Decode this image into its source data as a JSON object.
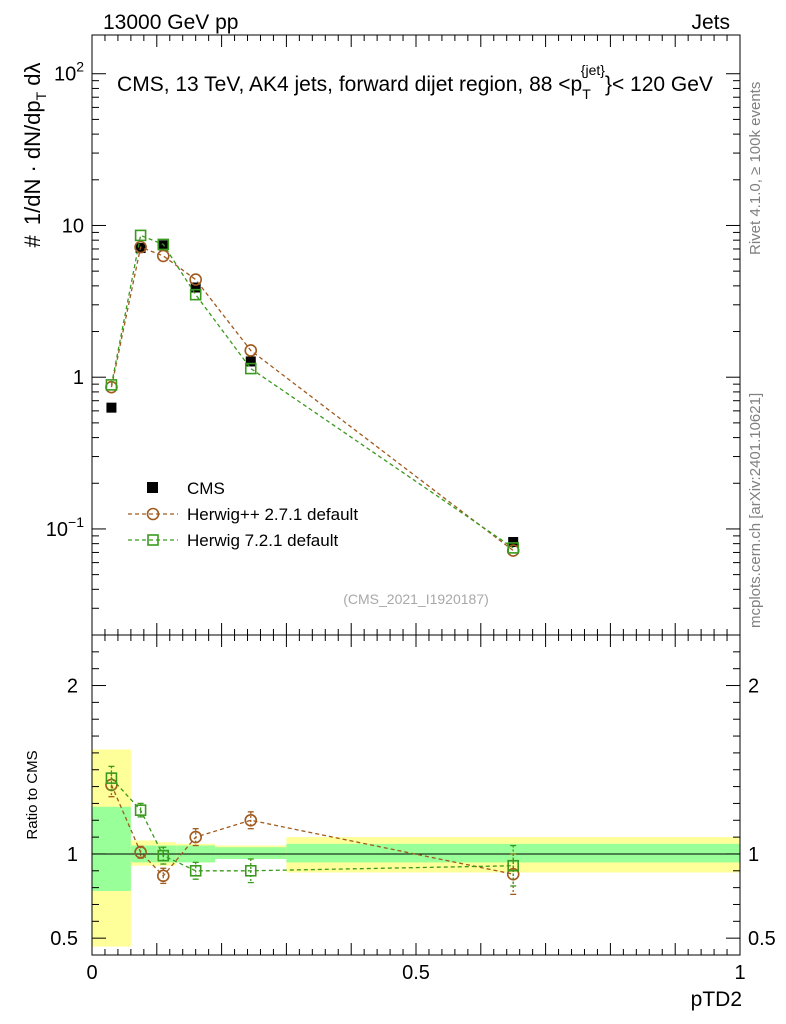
{
  "header": {
    "energy": "13000 GeV pp",
    "category": "Jets"
  },
  "chart_data": {
    "type": "scatter",
    "title": "CMS, 13 TeV, AK4 jets, forward dijet region, 88 < p_T^{jet} < 120 GeV",
    "title_parts": {
      "prefix": "CMS, 13 TeV, AK4 jets, forward dijet region, 88 <p",
      "sup": "{jet}",
      "sub": "T",
      "suffix": "}< 120 GeV"
    },
    "analysis_id": "(CMS_2021_I1920187)",
    "xlabel": "pTD2",
    "ylabel_main": "1/dN · dN/dp_T dλ",
    "ylabel_ratio": "Ratio to CMS",
    "right_text_top": "Rivet 4.1.0, ≥ 100k events",
    "right_text_bottom": "mcplots.cern.ch [arXiv:2401.10621]",
    "xlim": [
      0,
      1
    ],
    "ylim_main_log": [
      0.02,
      180
    ],
    "ylim_ratio": [
      0.4,
      2.3
    ],
    "x_ticks": [
      {
        "v": 0,
        "label": "0"
      },
      {
        "v": 0.5,
        "label": "0.5"
      },
      {
        "v": 1,
        "label": "1"
      }
    ],
    "y_ticks_main": [
      {
        "v": 0.1,
        "base": "10",
        "exp": "−1"
      },
      {
        "v": 1,
        "base": "1",
        "exp": ""
      },
      {
        "v": 10,
        "base": "10",
        "exp": ""
      },
      {
        "v": 100,
        "base": "10",
        "exp": "2"
      }
    ],
    "y_ticks_ratio": [
      {
        "v": 0.5,
        "label": "0.5"
      },
      {
        "v": 1,
        "label": "1"
      },
      {
        "v": 2,
        "label": "2"
      }
    ],
    "bins": [
      {
        "lo": 0.0,
        "hi": 0.06
      },
      {
        "lo": 0.06,
        "hi": 0.1
      },
      {
        "lo": 0.1,
        "hi": 0.13
      },
      {
        "lo": 0.13,
        "hi": 0.19
      },
      {
        "lo": 0.19,
        "hi": 0.3
      },
      {
        "lo": 0.3,
        "hi": 1.0
      }
    ],
    "series": [
      {
        "name": "CMS",
        "style": "data",
        "color": "#000000",
        "x": [
          0.03,
          0.075,
          0.11,
          0.16,
          0.245,
          0.65
        ],
        "y": [
          0.63,
          7.1,
          7.4,
          3.9,
          1.27,
          0.082
        ]
      },
      {
        "name": "Herwig++ 2.7.1 default",
        "style": "circle",
        "color": "#a05a1e",
        "x": [
          0.03,
          0.075,
          0.11,
          0.16,
          0.245,
          0.65
        ],
        "y": [
          0.86,
          7.2,
          6.3,
          4.4,
          1.5,
          0.072
        ],
        "ratio": [
          1.41,
          1.01,
          0.87,
          1.1,
          1.2,
          0.88
        ],
        "ratio_err": [
          0.07,
          0.035,
          0.045,
          0.05,
          0.05,
          0.12
        ]
      },
      {
        "name": "Herwig 7.2.1 default",
        "style": "square",
        "color": "#3a9a1e",
        "x": [
          0.03,
          0.075,
          0.11,
          0.16,
          0.245,
          0.65
        ],
        "y": [
          0.89,
          8.6,
          7.5,
          3.5,
          1.14,
          0.075
        ],
        "ratio": [
          1.45,
          1.26,
          0.99,
          0.9,
          0.9,
          0.93
        ],
        "ratio_err": [
          0.07,
          0.04,
          0.05,
          0.05,
          0.07,
          0.12
        ]
      }
    ],
    "uncertainty_bands": {
      "inner_color": "#99ff99",
      "outer_color": "#ffff99",
      "inner": [
        [
          0.78,
          1.28
        ],
        [
          0.95,
          1.05
        ],
        [
          0.95,
          1.05
        ],
        [
          0.95,
          1.05
        ],
        [
          0.97,
          1.04
        ],
        [
          0.95,
          1.06
        ]
      ],
      "outer": [
        [
          0.45,
          1.62
        ],
        [
          0.93,
          1.08
        ],
        [
          0.93,
          1.07
        ],
        [
          0.95,
          1.06
        ],
        [
          0.97,
          1.05
        ],
        [
          0.89,
          1.1
        ]
      ]
    }
  }
}
